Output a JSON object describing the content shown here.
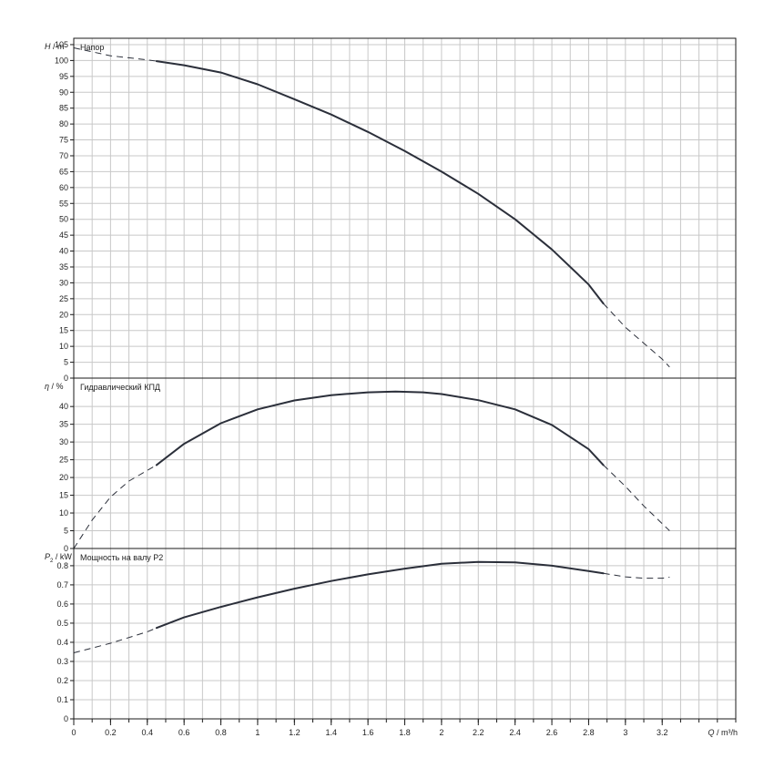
{
  "chart_data": [
    {
      "type": "line",
      "title": "Напор",
      "ylabel_symbol": "H",
      "ylabel_unit": "m",
      "ylim": [
        0,
        107
      ],
      "yticks": [
        0,
        5,
        10,
        15,
        20,
        25,
        30,
        35,
        40,
        45,
        50,
        55,
        60,
        65,
        70,
        75,
        80,
        85,
        90,
        95,
        100,
        105
      ],
      "grid": true,
      "x_range": [
        0,
        3.6
      ],
      "series": [
        {
          "style": "dashed",
          "x": [
            0,
            0.2,
            0.4,
            0.45
          ],
          "y": [
            104,
            101.5,
            100.2,
            99.8
          ]
        },
        {
          "style": "solid",
          "x": [
            0.45,
            0.6,
            0.8,
            1.0,
            1.2,
            1.4,
            1.6,
            1.8,
            2.0,
            2.2,
            2.4,
            2.6,
            2.8,
            2.88
          ],
          "y": [
            99.8,
            98.5,
            96.2,
            92.5,
            87.8,
            83,
            77.5,
            71.5,
            65,
            58,
            50,
            40.5,
            29.5,
            23.5
          ]
        },
        {
          "style": "dashed",
          "x": [
            2.88,
            3.0,
            3.1,
            3.2,
            3.24
          ],
          "y": [
            23.5,
            16,
            11,
            6,
            3.5
          ]
        }
      ]
    },
    {
      "type": "line",
      "title": "Гидравлический КПД",
      "ylabel_symbol": "η",
      "ylabel_unit": "%",
      "ylim": [
        0,
        48
      ],
      "yticks": [
        0,
        5,
        10,
        15,
        20,
        25,
        30,
        35,
        40
      ],
      "grid": true,
      "x_range": [
        0,
        3.6
      ],
      "series": [
        {
          "style": "dashed",
          "x": [
            0,
            0.1,
            0.2,
            0.3,
            0.4,
            0.45
          ],
          "y": [
            0,
            8,
            14.5,
            19,
            22,
            23.5
          ]
        },
        {
          "style": "solid",
          "x": [
            0.45,
            0.6,
            0.8,
            1.0,
            1.2,
            1.4,
            1.6,
            1.75,
            1.9,
            2.0,
            2.2,
            2.4,
            2.6,
            2.8,
            2.88
          ],
          "y": [
            23.5,
            29.5,
            35.3,
            39.2,
            41.7,
            43.2,
            44,
            44.2,
            44,
            43.5,
            41.8,
            39.2,
            34.8,
            28,
            23.5
          ]
        },
        {
          "style": "dashed",
          "x": [
            2.88,
            3.0,
            3.1,
            3.2,
            3.24
          ],
          "y": [
            23.5,
            17.5,
            12,
            7,
            5
          ]
        }
      ]
    },
    {
      "type": "line",
      "title": "Мощность на валу P2",
      "ylabel_symbol": "P",
      "ylabel_subscript": "2",
      "ylabel_unit": "kW",
      "ylim": [
        0,
        0.89
      ],
      "yticks": [
        0,
        0.1,
        0.2,
        0.3,
        0.4,
        0.5,
        0.6,
        0.7,
        0.8
      ],
      "ytick_labels": [
        "0",
        "0.1",
        "0.2",
        "0.3",
        "0.4",
        "0.5",
        "0.6",
        "0.7",
        "0.8"
      ],
      "xlabel_symbol": "Q",
      "xlabel_unit": "m³/h",
      "xticks": [
        0,
        0.2,
        0.4,
        0.6,
        0.8,
        1,
        1.2,
        1.4,
        1.6,
        1.8,
        2,
        2.2,
        2.4,
        2.6,
        2.8,
        3,
        3.2
      ],
      "xtick_labels": [
        "0",
        "0.2",
        "0.4",
        "0.6",
        "0.8",
        "1",
        "1.2",
        "1.4",
        "1.6",
        "1.8",
        "2",
        "2.2",
        "2.4",
        "2.6",
        "2.8",
        "3",
        "3.2"
      ],
      "grid": true,
      "x_range": [
        0,
        3.6
      ],
      "series": [
        {
          "style": "dashed",
          "x": [
            0,
            0.2,
            0.4,
            0.45
          ],
          "y": [
            0.345,
            0.395,
            0.455,
            0.475
          ]
        },
        {
          "style": "solid",
          "x": [
            0.45,
            0.6,
            0.8,
            1.0,
            1.2,
            1.4,
            1.6,
            1.8,
            2.0,
            2.2,
            2.4,
            2.6,
            2.8,
            2.88
          ],
          "y": [
            0.475,
            0.53,
            0.585,
            0.635,
            0.68,
            0.72,
            0.755,
            0.785,
            0.81,
            0.82,
            0.817,
            0.8,
            0.772,
            0.76
          ]
        },
        {
          "style": "dashed",
          "x": [
            2.88,
            3.0,
            3.1,
            3.2,
            3.24
          ],
          "y": [
            0.76,
            0.742,
            0.735,
            0.735,
            0.74
          ]
        }
      ]
    }
  ]
}
